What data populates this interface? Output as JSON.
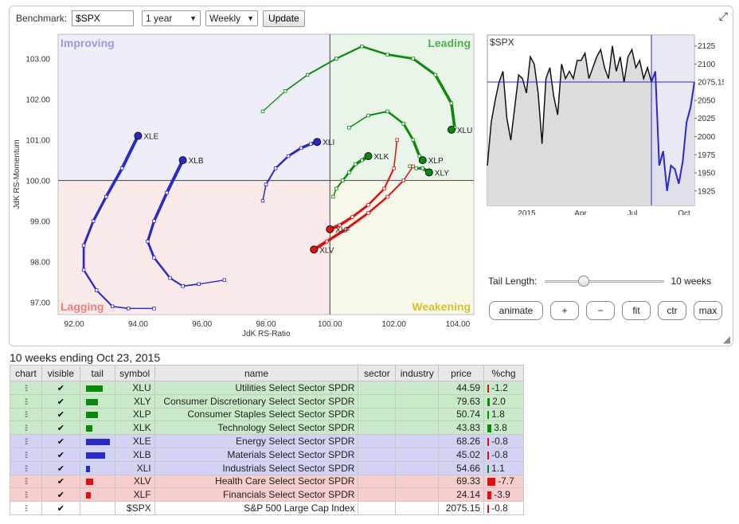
{
  "toolbar": {
    "benchmark_label": "Benchmark:",
    "benchmark_value": "$SPX",
    "period": "1 year",
    "interval": "Weekly",
    "update_label": "Update"
  },
  "rrg": {
    "quadrants": {
      "improving": "Improving",
      "leading": "Leading",
      "lagging": "Lagging",
      "weakening": "Weakening"
    },
    "xlabel": "JdK RS-Ratio",
    "ylabel": "JdK RS-Momentum",
    "x_ticks": [
      "92.00",
      "94.00",
      "96.00",
      "98.00",
      "100.00",
      "102.00",
      "104.00"
    ],
    "y_ticks": [
      "103.00",
      "102.00",
      "101.00",
      "100.00",
      "99.00",
      "98.00",
      "97.00"
    ],
    "colors": {
      "leading": "#0a8a0a",
      "improving": "#2a2acc",
      "lagging": "#e01010",
      "improving_bg": "#eeeef8",
      "leading_bg": "#e8f5e8",
      "lagging_bg": "#fbeaea",
      "weakening_bg": "#f8f8ea"
    }
  },
  "chart_data": {
    "type": "scatter",
    "title": "",
    "xlabel": "JdK RS-Ratio",
    "ylabel": "JdK RS-Momentum",
    "xlim": [
      91.5,
      104.5
    ],
    "ylim": [
      96.7,
      103.6
    ],
    "series": [
      {
        "name": "XLU",
        "color": "#0a8a0a",
        "points": [
          [
            97.9,
            101.7
          ],
          [
            98.6,
            102.2
          ],
          [
            99.3,
            102.6
          ],
          [
            100.2,
            103.0
          ],
          [
            101.0,
            103.3
          ],
          [
            101.8,
            103.1
          ],
          [
            102.6,
            103.0
          ],
          [
            103.3,
            102.6
          ],
          [
            103.8,
            101.9
          ],
          [
            103.9,
            101.3
          ],
          [
            103.8,
            101.25
          ]
        ]
      },
      {
        "name": "XLY",
        "color": "#0a8a0a",
        "points": [
          [
            102.5,
            100.35
          ],
          [
            102.7,
            100.3
          ],
          [
            102.9,
            100.3
          ],
          [
            103.1,
            100.2
          ]
        ]
      },
      {
        "name": "XLP",
        "color": "#0a8a0a",
        "points": [
          [
            100.6,
            101.3
          ],
          [
            101.2,
            101.6
          ],
          [
            101.8,
            101.7
          ],
          [
            102.3,
            101.4
          ],
          [
            102.6,
            101.0
          ],
          [
            102.8,
            100.6
          ],
          [
            102.9,
            100.5
          ]
        ]
      },
      {
        "name": "XLK",
        "color": "#0a8a0a",
        "points": [
          [
            100.1,
            99.6
          ],
          [
            100.2,
            99.8
          ],
          [
            100.4,
            100.0
          ],
          [
            100.6,
            100.2
          ],
          [
            100.8,
            100.4
          ],
          [
            101.0,
            100.5
          ],
          [
            101.2,
            100.6
          ]
        ]
      },
      {
        "name": "XLI",
        "color": "#2a2acc",
        "points": [
          [
            97.9,
            99.5
          ],
          [
            98.0,
            99.9
          ],
          [
            98.3,
            100.3
          ],
          [
            98.7,
            100.6
          ],
          [
            99.1,
            100.8
          ],
          [
            99.4,
            100.9
          ],
          [
            99.6,
            100.95
          ]
        ]
      },
      {
        "name": "XLE",
        "color": "#2a2acc",
        "points": [
          [
            94.5,
            96.85
          ],
          [
            93.7,
            96.85
          ],
          [
            93.2,
            96.9
          ],
          [
            92.7,
            97.3
          ],
          [
            92.3,
            97.8
          ],
          [
            92.3,
            98.4
          ],
          [
            92.6,
            99.0
          ],
          [
            93.0,
            99.6
          ],
          [
            93.5,
            100.3
          ],
          [
            94.0,
            101.1
          ]
        ]
      },
      {
        "name": "XLB",
        "color": "#2a2acc",
        "points": [
          [
            96.7,
            97.55
          ],
          [
            95.9,
            97.45
          ],
          [
            95.4,
            97.4
          ],
          [
            95.0,
            97.6
          ],
          [
            94.5,
            98.1
          ],
          [
            94.3,
            98.5
          ],
          [
            94.5,
            99.0
          ],
          [
            94.9,
            99.7
          ],
          [
            95.4,
            100.5
          ]
        ]
      },
      {
        "name": "XLV",
        "color": "#e01010",
        "points": [
          [
            102.6,
            100.35
          ],
          [
            102.3,
            100.0
          ],
          [
            101.8,
            99.6
          ],
          [
            101.2,
            99.2
          ],
          [
            100.5,
            98.8
          ],
          [
            99.9,
            98.5
          ],
          [
            99.5,
            98.3
          ]
        ]
      },
      {
        "name": "XLF",
        "color": "#e01010",
        "points": [
          [
            102.1,
            101.0
          ],
          [
            102.0,
            100.3
          ],
          [
            101.7,
            99.8
          ],
          [
            101.2,
            99.4
          ],
          [
            100.7,
            99.1
          ],
          [
            100.3,
            98.9
          ],
          [
            100.0,
            98.8
          ]
        ]
      }
    ]
  },
  "mini_chart": {
    "title": "$SPX",
    "y_ticks": [
      "2125",
      "2100",
      "2075",
      "2050",
      "2025",
      "2000",
      "1975",
      "1950",
      "1925"
    ],
    "current_label": "2075.15",
    "x_ticks": [
      "2015",
      "Apr",
      "Jul",
      "Oct"
    ],
    "values": [
      1960,
      2020,
      2050,
      2075,
      2090,
      2025,
      1995,
      2040,
      2085,
      2080,
      2060,
      2110,
      2100,
      2060,
      1990,
      2080,
      2095,
      2055,
      2030,
      2100,
      2080,
      2090,
      2080,
      2105,
      2105,
      2115,
      2080,
      2095,
      2110,
      2120,
      2095,
      2080,
      2125,
      2090,
      2110,
      2075,
      2110,
      2120,
      2095,
      2105,
      2080,
      2095,
      2075,
      2090,
      1960,
      1980,
      1925,
      1960,
      1955,
      1935,
      1965,
      2020,
      2040,
      2075
    ]
  },
  "tail": {
    "label": "Tail Length:",
    "value": "10 weeks"
  },
  "controls": {
    "animate": "animate",
    "plus": "+",
    "minus": "−",
    "fit": "fit",
    "ctr": "ctr",
    "max": "max"
  },
  "caption": "10 weeks ending Oct 23, 2015",
  "table": {
    "headers": {
      "chart": "chart",
      "visible": "visible",
      "tail": "tail",
      "symbol": "symbol",
      "name": "name",
      "sector": "sector",
      "industry": "industry",
      "price": "price",
      "chg": "%chg"
    },
    "rows": [
      {
        "symbol": "XLU",
        "name": "Utilities Select Sector SPDR",
        "price": "44.59",
        "chg": "-1.2",
        "group": "g",
        "tail_color": "#0a8a0a",
        "tail_len": 0.7,
        "chg_color": "#e01010"
      },
      {
        "symbol": "XLY",
        "name": "Consumer Discretionary Select Sector SPDR",
        "price": "79.63",
        "chg": "2.0",
        "group": "g",
        "tail_color": "#0a8a0a",
        "tail_len": 0.5,
        "chg_color": "#0a8a0a"
      },
      {
        "symbol": "XLP",
        "name": "Consumer Staples Select Sector SPDR",
        "price": "50.74",
        "chg": "1.8",
        "group": "g",
        "tail_color": "#0a8a0a",
        "tail_len": 0.5,
        "chg_color": "#0a8a0a"
      },
      {
        "symbol": "XLK",
        "name": "Technology Select Sector SPDR",
        "price": "43.83",
        "chg": "3.8",
        "group": "g",
        "tail_color": "#0a8a0a",
        "tail_len": 0.25,
        "chg_color": "#0a8a0a"
      },
      {
        "symbol": "XLE",
        "name": "Energy Select Sector SPDR",
        "price": "68.26",
        "chg": "-0.8",
        "group": "b",
        "tail_color": "#2a2acc",
        "tail_len": 1.0,
        "chg_color": "#e01010"
      },
      {
        "symbol": "XLB",
        "name": "Materials Select Sector SPDR",
        "price": "45.02",
        "chg": "-0.8",
        "group": "b",
        "tail_color": "#2a2acc",
        "tail_len": 0.8,
        "chg_color": "#e01010"
      },
      {
        "symbol": "XLI",
        "name": "Industrials Select Sector SPDR",
        "price": "54.66",
        "chg": "1.1",
        "group": "b",
        "tail_color": "#2a2acc",
        "tail_len": 0.15,
        "chg_color": "#0a8a0a"
      },
      {
        "symbol": "XLV",
        "name": "Health Care Select Sector SPDR",
        "price": "69.33",
        "chg": "-7.7",
        "group": "r",
        "tail_color": "#e01010",
        "tail_len": 0.3,
        "chg_color": "#e01010"
      },
      {
        "symbol": "XLF",
        "name": "Financials Select Sector SPDR",
        "price": "24.14",
        "chg": "-3.9",
        "group": "r",
        "tail_color": "#e01010",
        "tail_len": 0.2,
        "chg_color": "#e01010"
      },
      {
        "symbol": "$SPX",
        "name": "S&P 500 Large Cap Index",
        "price": "2075.15",
        "chg": "-0.8",
        "group": "w",
        "tail_color": "",
        "tail_len": 0,
        "chg_color": "#e01010"
      }
    ]
  }
}
